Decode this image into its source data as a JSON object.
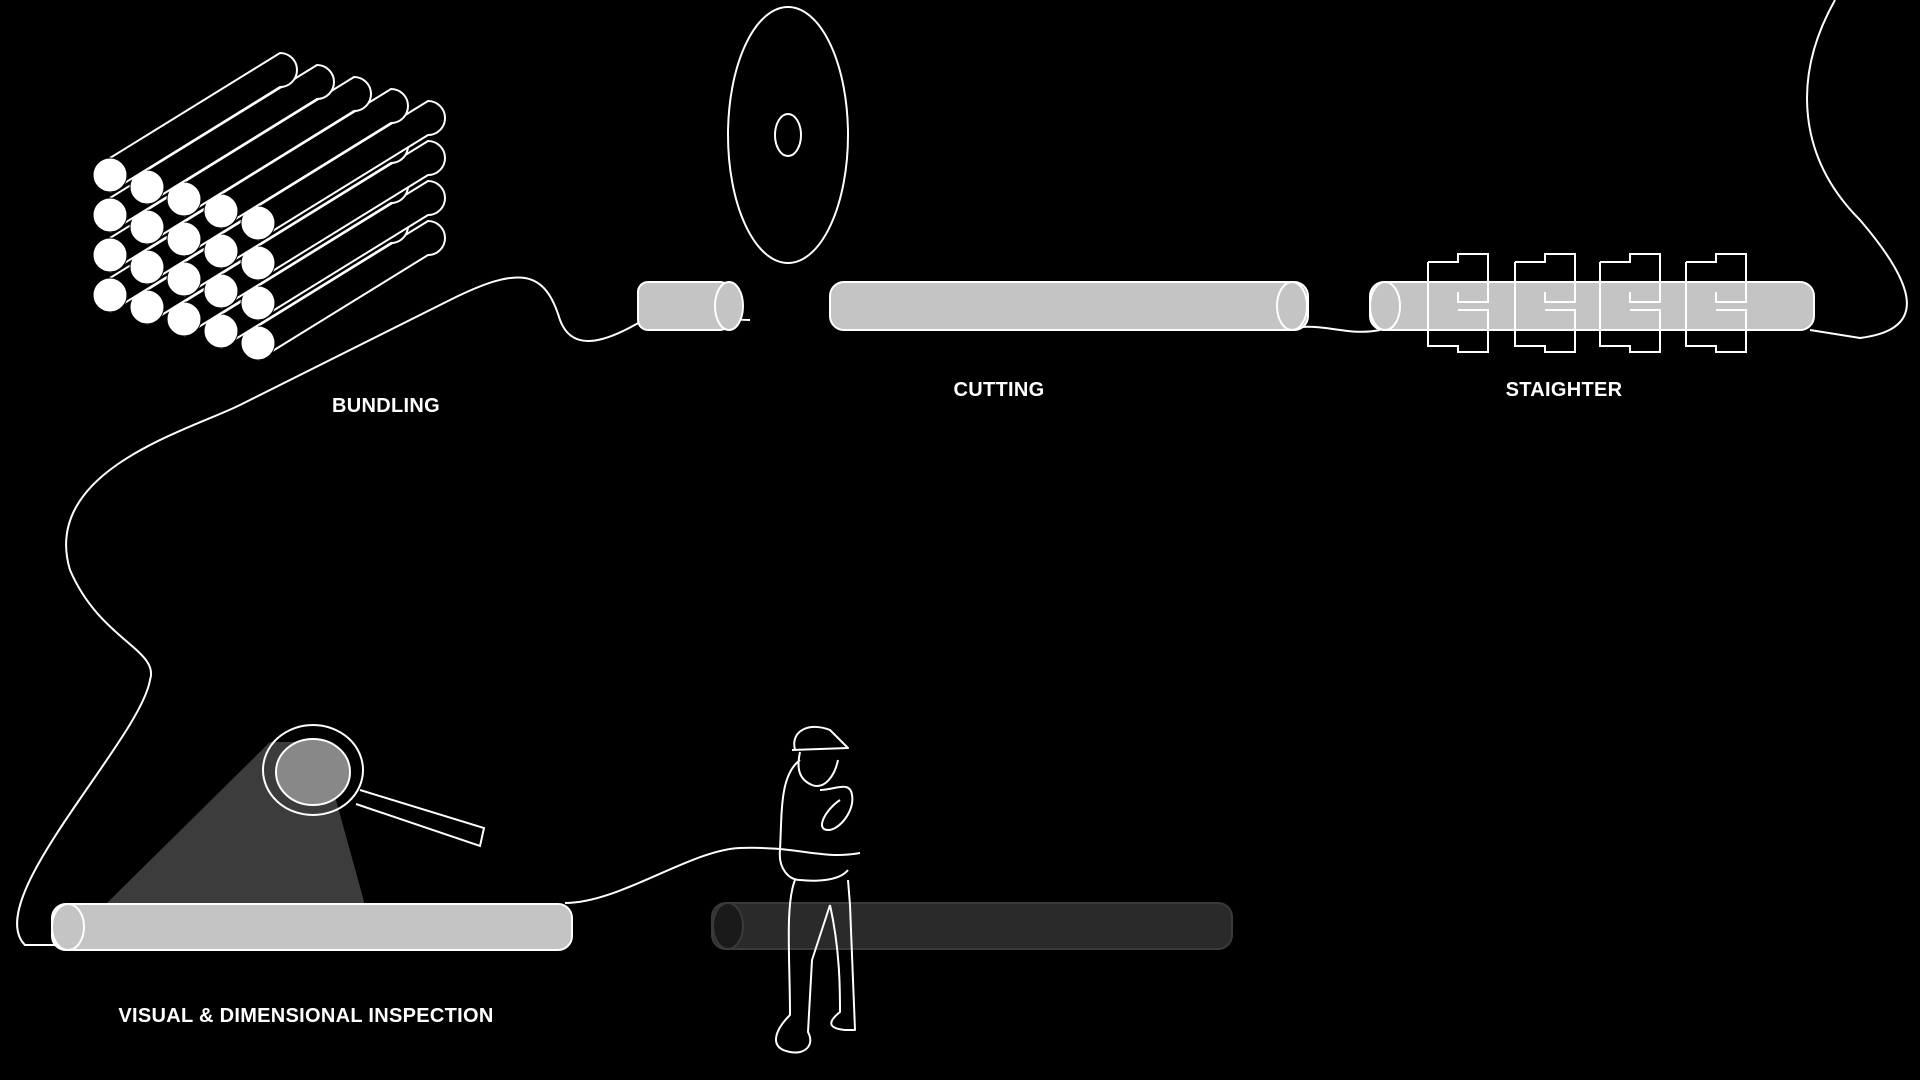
{
  "labels": {
    "bundling": "BUNDLING",
    "cutting": "CUTTING",
    "straighter": "STAIGHTER",
    "inspection": "VISUAL & DIMENSIONAL INSPECTION"
  },
  "colors": {
    "background": "#000000",
    "line": "#ffffff",
    "pipe_fill": "#c4c4c4",
    "pipe_faded": "#2a2a2a",
    "lens": "#888888",
    "light_beam": "#3c3c3c"
  },
  "icons": [
    "pipe-bundle-icon",
    "cutting-disc-icon",
    "straightener-rollers-icon",
    "magnifier-icon",
    "worker-icon"
  ]
}
